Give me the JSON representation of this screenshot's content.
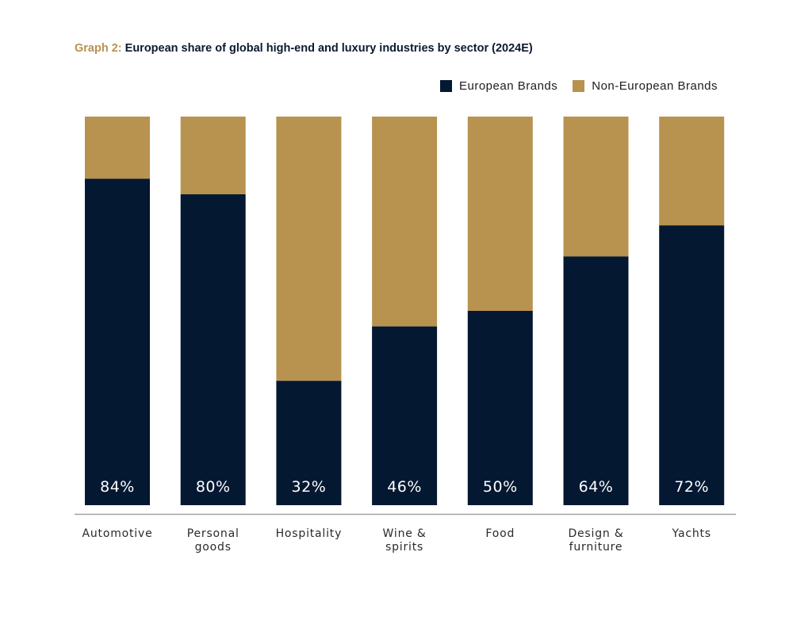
{
  "header": {
    "title_prefix": "Graph 2:",
    "title_main": "European share of global high-end and luxury industries by sector (2024E)"
  },
  "legend": [
    {
      "label": "European Brands",
      "color": "#041832"
    },
    {
      "label": "Non-European Brands",
      "color": "#b8924f"
    }
  ],
  "chart_data": {
    "type": "bar",
    "stacked": true,
    "title": "European share of global high-end and luxury industries by sector (2024E)",
    "categories": [
      "Automotive",
      "Personal goods",
      "Hospitality",
      "Wine & spirits",
      "Food",
      "Design & furniture",
      "Yachts"
    ],
    "category_lines": [
      [
        "Automotive"
      ],
      [
        "Personal",
        "goods"
      ],
      [
        "Hospitality"
      ],
      [
        "Wine &",
        "spirits"
      ],
      [
        "Food"
      ],
      [
        "Design &",
        "furniture"
      ],
      [
        "Yachts"
      ]
    ],
    "series": [
      {
        "name": "European Brands",
        "color": "#041832",
        "values": [
          84,
          80,
          32,
          46,
          50,
          64,
          72
        ]
      },
      {
        "name": "Non-European Brands",
        "color": "#b8924f",
        "values": [
          16,
          20,
          68,
          54,
          50,
          36,
          28
        ]
      }
    ],
    "data_labels": [
      "84%",
      "80%",
      "32%",
      "46%",
      "50%",
      "64%",
      "72%"
    ],
    "ylim": [
      0,
      100
    ],
    "xlabel": "",
    "ylabel": "",
    "grid": false,
    "legend_position": "top-right"
  }
}
